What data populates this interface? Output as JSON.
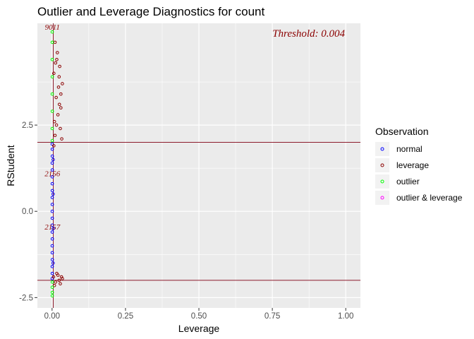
{
  "chart_data": {
    "type": "scatter",
    "title": "Outlier and Leverage Diagnostics for count",
    "xlabel": "Leverage",
    "ylabel": "RStudent",
    "xlim": [
      -0.05,
      1.05
    ],
    "ylim": [
      -2.8,
      5.45
    ],
    "x_ticks": [
      0.0,
      0.25,
      0.5,
      0.75,
      1.0
    ],
    "x_tick_labels": [
      "0.00",
      "0.25",
      "0.50",
      "0.75",
      "1.00"
    ],
    "y_ticks": [
      -2.5,
      0.0,
      2.5
    ],
    "y_tick_labels": [
      "-2.5",
      "0.0",
      "2.5"
    ],
    "grid": true,
    "reference_lines": {
      "horizontal": [
        -2,
        2
      ],
      "vertical": [
        0.004
      ],
      "color": "#8B1A2B"
    },
    "annotation": {
      "text": "Threshold: 0.004",
      "position": "top-right",
      "color": "#8B0000"
    },
    "legend": {
      "title": "Observation",
      "placement": "right",
      "entries": [
        {
          "label": "normal",
          "color": "#0000FF"
        },
        {
          "label": "leverage",
          "color": "#8B0000"
        },
        {
          "label": "outlier",
          "color": "#00FF00"
        },
        {
          "label": "outlier & leverage",
          "color": "#FF00FF"
        }
      ]
    },
    "point_labels": [
      {
        "text": "9011",
        "x": 0.001,
        "y": 5.35,
        "color": "#8B0000"
      },
      {
        "text": "2156",
        "x": 0.001,
        "y": 1.1,
        "color": "#8B0000"
      },
      {
        "text": "2157",
        "x": 0.001,
        "y": -0.45,
        "color": "#8B0000"
      }
    ],
    "series": [
      {
        "name": "normal",
        "color": "#0000FF",
        "points": [
          [
            0.0005,
            -1.95
          ],
          [
            0.0008,
            -1.8
          ],
          [
            0.0006,
            -1.6
          ],
          [
            0.0009,
            -1.4
          ],
          [
            0.0007,
            -1.2
          ],
          [
            0.0005,
            -1.0
          ],
          [
            0.0008,
            -0.8
          ],
          [
            0.0006,
            -0.6
          ],
          [
            0.0009,
            -0.4
          ],
          [
            0.0007,
            -0.2
          ],
          [
            0.0005,
            0.0
          ],
          [
            0.0008,
            0.2
          ],
          [
            0.0006,
            0.4
          ],
          [
            0.0009,
            0.6
          ],
          [
            0.0007,
            0.8
          ],
          [
            0.0005,
            1.0
          ],
          [
            0.0008,
            1.2
          ],
          [
            0.0006,
            1.4
          ],
          [
            0.0009,
            1.6
          ],
          [
            0.0007,
            1.8
          ],
          [
            0.0005,
            1.95
          ],
          [
            0.0035,
            -1.5
          ],
          [
            0.0038,
            -0.5
          ],
          [
            0.0036,
            0.5
          ],
          [
            0.0037,
            1.5
          ]
        ]
      },
      {
        "name": "leverage",
        "color": "#8B0000",
        "points": [
          [
            0.005,
            -1.9
          ],
          [
            0.012,
            -2.05
          ],
          [
            0.02,
            -1.85
          ],
          [
            0.028,
            -2.1
          ],
          [
            0.035,
            -1.95
          ],
          [
            0.008,
            -2.15
          ],
          [
            0.016,
            -1.8
          ],
          [
            0.024,
            -2.0
          ],
          [
            0.032,
            -1.9
          ],
          [
            0.006,
            1.9
          ],
          [
            0.01,
            2.2
          ],
          [
            0.015,
            2.5
          ],
          [
            0.02,
            2.8
          ],
          [
            0.025,
            3.1
          ],
          [
            0.03,
            3.4
          ],
          [
            0.035,
            3.7
          ],
          [
            0.006,
            4.0
          ],
          [
            0.012,
            4.3
          ],
          [
            0.018,
            4.6
          ],
          [
            0.024,
            3.9
          ],
          [
            0.03,
            3.0
          ],
          [
            0.008,
            2.6
          ],
          [
            0.014,
            3.3
          ],
          [
            0.022,
            3.6
          ],
          [
            0.028,
            2.4
          ],
          [
            0.033,
            2.1
          ],
          [
            0.01,
            4.9
          ],
          [
            0.016,
            4.4
          ],
          [
            0.026,
            4.2
          ]
        ]
      },
      {
        "name": "outlier",
        "color": "#00FF00",
        "points": [
          [
            0.0008,
            2.05
          ],
          [
            0.0005,
            2.4
          ],
          [
            0.0009,
            2.9
          ],
          [
            0.0006,
            3.4
          ],
          [
            0.0008,
            3.9
          ],
          [
            0.0005,
            4.4
          ],
          [
            0.0007,
            4.9
          ],
          [
            0.0006,
            5.2
          ],
          [
            0.0008,
            -2.05
          ],
          [
            0.0006,
            -2.2
          ],
          [
            0.0009,
            -2.35
          ],
          [
            0.0007,
            -2.45
          ]
        ]
      },
      {
        "name": "outlier & leverage",
        "color": "#FF00FF",
        "points": []
      }
    ]
  }
}
